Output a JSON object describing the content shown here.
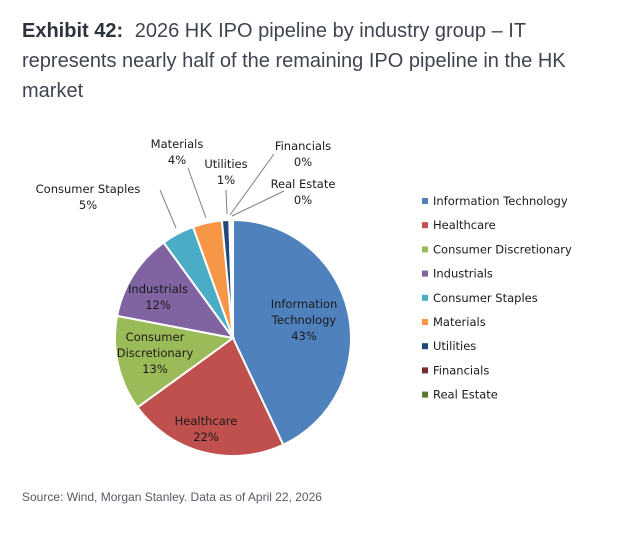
{
  "header": {
    "exhibit_label": "Exhibit 42:",
    "title": "2026 HK IPO pipeline by industry group – IT represents nearly half of the remaining IPO pipeline in the HK market"
  },
  "source": "Source: Wind, Morgan Stanley. Data as of April 22, 2026",
  "chart_data": {
    "type": "pie",
    "title": "",
    "legend_position": "right",
    "slices": [
      {
        "name": "Information Technology",
        "label_lines": [
          "Information",
          "Technology"
        ],
        "value": 43,
        "value_label": "43%",
        "color": "#4f81bd"
      },
      {
        "name": "Healthcare",
        "label_lines": [
          "Healthcare"
        ],
        "value": 22,
        "value_label": "22%",
        "color": "#c0504d"
      },
      {
        "name": "Consumer Discretionary",
        "label_lines": [
          "Consumer",
          "Discretionary"
        ],
        "value": 13,
        "value_label": "13%",
        "color": "#9bbb59"
      },
      {
        "name": "Industrials",
        "label_lines": [
          "Industrials"
        ],
        "value": 12,
        "value_label": "12%",
        "color": "#8064a2"
      },
      {
        "name": "Consumer Staples",
        "label_lines": [
          "Consumer Staples"
        ],
        "value": 4.5,
        "value_label": "5%",
        "color": "#4bacc6"
      },
      {
        "name": "Materials",
        "label_lines": [
          "Materials"
        ],
        "value": 4,
        "value_label": "4%",
        "color": "#f79646"
      },
      {
        "name": "Utilities",
        "label_lines": [
          "Utilities"
        ],
        "value": 1,
        "value_label": "1%",
        "color": "#1f497d"
      },
      {
        "name": "Financials",
        "label_lines": [
          "Financials"
        ],
        "value": 0.3,
        "value_label": "0%",
        "color": "#7b2c2c"
      },
      {
        "name": "Real Estate",
        "label_lines": [
          "Real Estate"
        ],
        "value": 0.2,
        "value_label": "0%",
        "color": "#5a7a2e"
      }
    ]
  }
}
